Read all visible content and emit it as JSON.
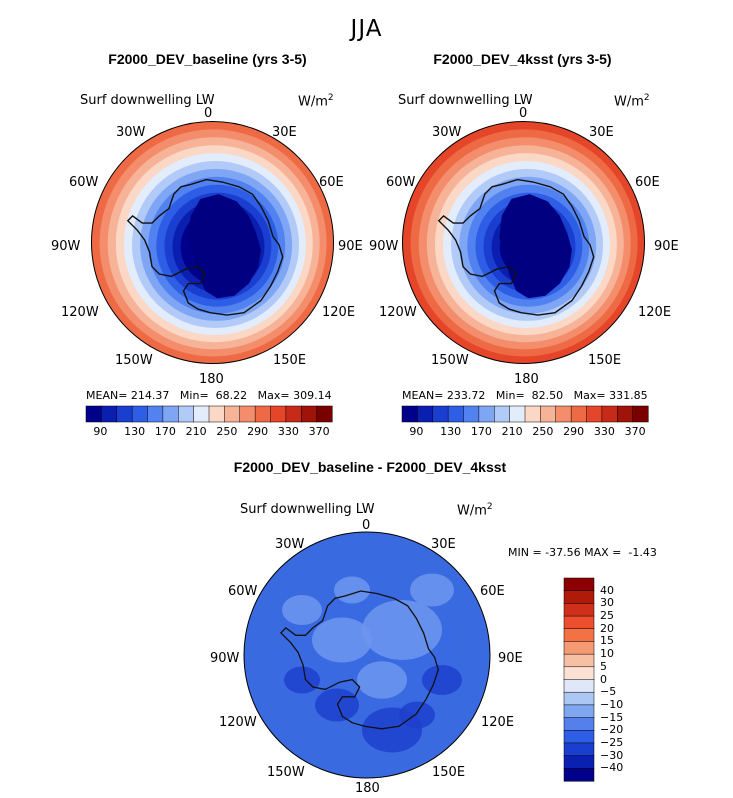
{
  "figure": {
    "suptitle": "JJA"
  },
  "panels": [
    {
      "title": "F2000_DEV_baseline (yrs 3-5)",
      "variable": "Surf downwelling LW",
      "units": "W/m",
      "units_sup": "2",
      "stats": {
        "mean_label": "MEAN=",
        "mean": "214.37",
        "min_label": "Min=",
        "min": "68.22",
        "max_label": "Max=",
        "max": "309.14"
      },
      "outer_level": 11
    },
    {
      "title": "F2000_DEV_4ksst (yrs 3-5)",
      "variable": "Surf downwelling LW",
      "units": "W/m",
      "units_sup": "2",
      "stats": {
        "mean_label": "MEAN=",
        "mean": "233.72",
        "min_label": "Min=",
        "min": "82.50",
        "max_label": "Max=",
        "max": "331.85"
      },
      "outer_level": 12
    }
  ],
  "diff_panel": {
    "title": "F2000_DEV_baseline - F2000_DEV_4ksst",
    "variable": "Surf downwelling LW",
    "units": "W/m",
    "units_sup": "2",
    "minmax_text": "MIN = -37.56 MAX =  -1.43"
  },
  "longitude_labels": {
    "top": "0",
    "ne30": "30E",
    "ne60": "60E",
    "e90": "90E",
    "e120": "120E",
    "e150": "150E",
    "bottom": "180",
    "w150": "150W",
    "w120": "120W",
    "w90": "90W",
    "w60": "60W",
    "w30": "30W"
  },
  "abs_colorbar": {
    "colors": [
      "#00008b",
      "#0a1fb0",
      "#1a3fd0",
      "#2f5ee6",
      "#5282f0",
      "#7fa6f4",
      "#b1caf7",
      "#e3ecfa",
      "#fbd7c6",
      "#f7b397",
      "#f38d6b",
      "#ee6a45",
      "#e5462a",
      "#c82a18",
      "#a01308",
      "#7a0000"
    ],
    "tick_labels": [
      "90",
      "130",
      "170",
      "210",
      "250",
      "290",
      "330",
      "370"
    ]
  },
  "diff_colorbar": {
    "colors_top_to_bottom": [
      "#8b0000",
      "#b01a08",
      "#d0301a",
      "#ec4f2e",
      "#f27244",
      "#f59a72",
      "#f7c0a5",
      "#fbe2d5",
      "#dfe7f8",
      "#adc7f4",
      "#7fa6f1",
      "#5580ec",
      "#2f5ee6",
      "#1a3fd0",
      "#0a20b0",
      "#00008b"
    ],
    "tick_labels_top_to_bottom": [
      "40",
      "30",
      "25",
      "20",
      "15",
      "10",
      "5",
      "0",
      "−5",
      "−10",
      "−15",
      "−20",
      "−25",
      "−30",
      "−40"
    ]
  },
  "field_colors": {
    "ocean_low": "#e6eef8",
    "land_core": "#000080",
    "land_mid": "#0c2fc2",
    "diff_background": "#3a6ae0",
    "diff_light": "#6f96ee",
    "diff_dark": "#1d3fcc",
    "coast": "#111111"
  }
}
